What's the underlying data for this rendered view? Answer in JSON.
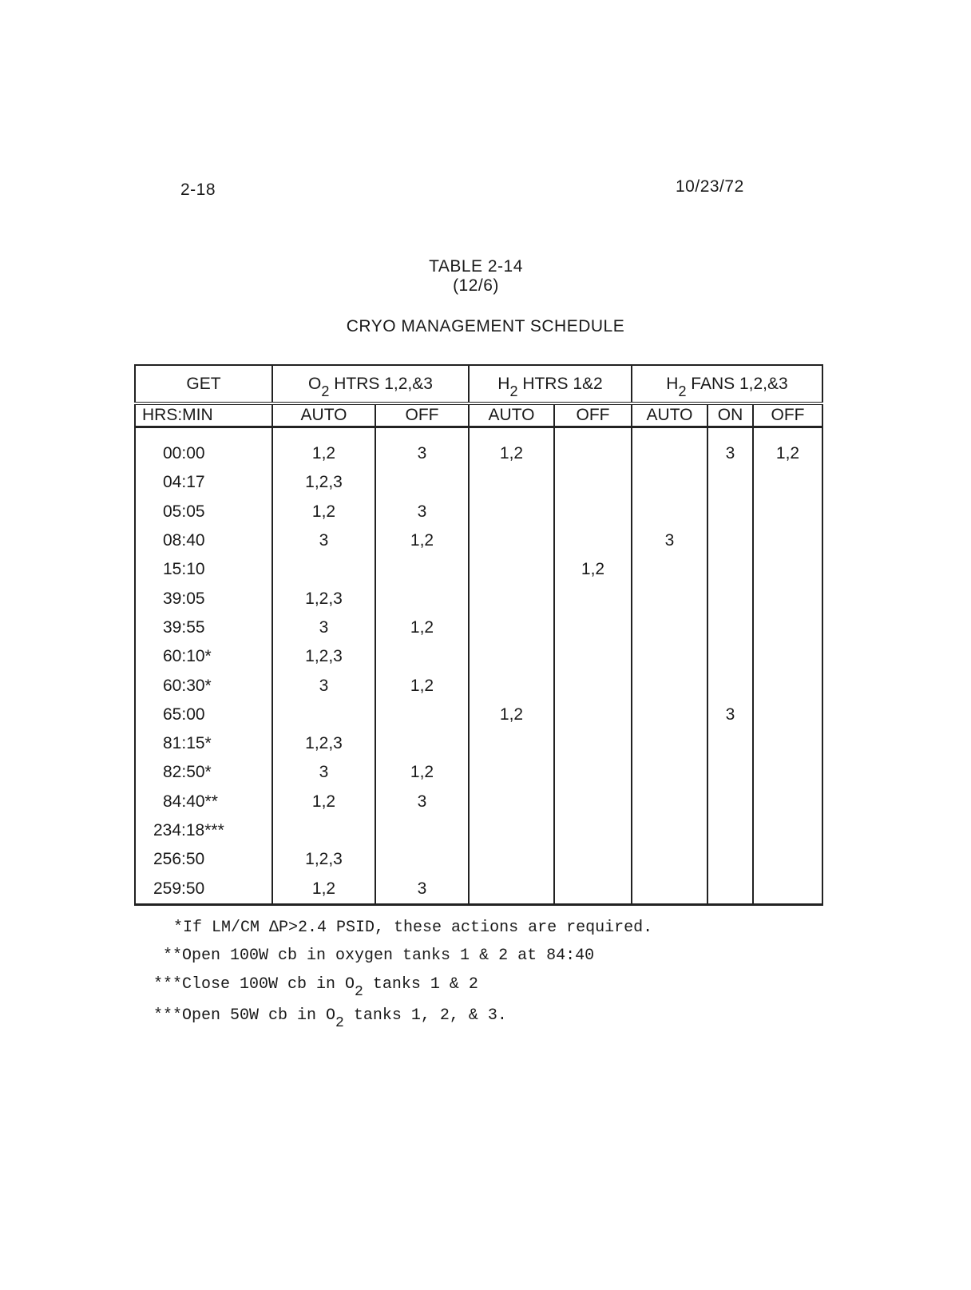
{
  "page": {
    "number": "2-18",
    "date": "10/23/72"
  },
  "title": {
    "line1": "TABLE 2-14",
    "line2": "(12/6)",
    "line3": "CRYO MANAGEMENT SCHEDULE"
  },
  "table": {
    "group_headers": [
      {
        "pre": "GET",
        "sub": "",
        "post": ""
      },
      {
        "pre": "O",
        "sub": "2",
        "post": " HTRS 1,2,&3"
      },
      {
        "pre": "H",
        "sub": "2",
        "post": " HTRS 1&2"
      },
      {
        "pre": "H",
        "sub": "2",
        "post": " FANS 1,2,&3"
      }
    ],
    "sub_headers": [
      "HRS:MIN",
      "AUTO",
      "OFF",
      "AUTO",
      "OFF",
      "AUTO",
      "ON",
      "OFF"
    ],
    "rows": [
      [
        "00:00",
        "1,2",
        "3",
        "1,2",
        "",
        "",
        "3",
        "1,2"
      ],
      [
        "04:17",
        "1,2,3",
        "",
        "",
        "",
        "",
        "",
        ""
      ],
      [
        "05:05",
        "1,2",
        "3",
        "",
        "",
        "",
        "",
        ""
      ],
      [
        "08:40",
        "3",
        "1,2",
        "",
        "",
        "3",
        "",
        ""
      ],
      [
        "15:10",
        "",
        "",
        "",
        "1,2",
        "",
        "",
        ""
      ],
      [
        "39:05",
        "1,2,3",
        "",
        "",
        "",
        "",
        "",
        ""
      ],
      [
        "39:55",
        "3",
        "1,2",
        "",
        "",
        "",
        "",
        ""
      ],
      [
        "60:10*",
        "1,2,3",
        "",
        "",
        "",
        "",
        "",
        ""
      ],
      [
        "60:30*",
        "3",
        "1,2",
        "",
        "",
        "",
        "",
        ""
      ],
      [
        "65:00",
        "",
        "",
        "1,2",
        "",
        "",
        "3",
        ""
      ],
      [
        "81:15*",
        "1,2,3",
        "",
        "",
        "",
        "",
        "",
        ""
      ],
      [
        "82:50*",
        "3",
        "1,2",
        "",
        "",
        "",
        "",
        ""
      ],
      [
        "84:40**",
        "1,2",
        "3",
        "",
        "",
        "",
        "",
        ""
      ],
      [
        "234:18***",
        "",
        "",
        "",
        "",
        "",
        "",
        ""
      ],
      [
        "256:50",
        "1,2,3",
        "",
        "",
        "",
        "",
        "",
        ""
      ],
      [
        "259:50",
        "1,2",
        "3",
        "",
        "",
        "",
        "",
        ""
      ]
    ]
  },
  "footnotes": [
    {
      "pre": "*If LM/CM ΔP>2.4 PSID, these actions are required.",
      "sub": "",
      "post": ""
    },
    {
      "pre": "**Open 100W cb in oxygen tanks 1 & 2 at 84:40",
      "sub": "",
      "post": ""
    },
    {
      "pre": "***Close 100W cb in O",
      "sub": "2",
      "post": " tanks 1 & 2"
    },
    {
      "pre": "***Open 50W cb in O",
      "sub": "2",
      "post": " tanks 1, 2, & 3."
    }
  ]
}
